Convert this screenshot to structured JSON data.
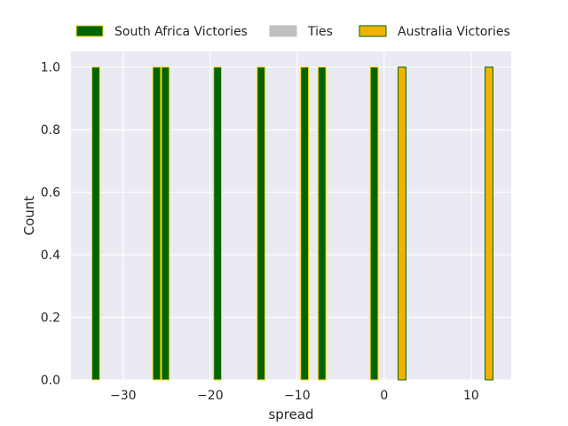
{
  "chart_data": {
    "type": "bar",
    "title": "",
    "xlabel": "spread",
    "ylabel": "Count",
    "xlim": [
      -36,
      14.6
    ],
    "ylim": [
      0,
      1.05
    ],
    "xticks": [
      -30,
      -20,
      -10,
      0,
      10
    ],
    "xtick_labels": [
      "−30",
      "−20",
      "−10",
      "0",
      "10"
    ],
    "yticks": [
      0.0,
      0.2,
      0.4,
      0.6,
      0.8,
      1.0
    ],
    "ytick_labels": [
      "0.0",
      "0.2",
      "0.4",
      "0.6",
      "0.8",
      "1.0"
    ],
    "grid": true,
    "legend_position": "top",
    "series": [
      {
        "name": "South Africa Victories",
        "fill": "#006400",
        "edge": "#ffd700",
        "bins": [
          {
            "x0": -33.6,
            "x1": -32.7,
            "value": 1
          },
          {
            "x0": -26.6,
            "x1": -25.7,
            "value": 1
          },
          {
            "x0": -25.6,
            "x1": -24.7,
            "value": 1
          },
          {
            "x0": -19.6,
            "x1": -18.7,
            "value": 1
          },
          {
            "x0": -14.6,
            "x1": -13.7,
            "value": 1
          },
          {
            "x0": -9.6,
            "x1": -8.7,
            "value": 1
          },
          {
            "x0": -7.6,
            "x1": -6.7,
            "value": 1
          },
          {
            "x0": -1.6,
            "x1": -0.7,
            "value": 1
          }
        ]
      },
      {
        "name": "Ties",
        "fill": "#c0c0c0",
        "edge": "#c0c0c0",
        "bins": []
      },
      {
        "name": "Australia Victories",
        "fill": "#f0b400",
        "edge": "#006400",
        "bins": [
          {
            "x0": 1.6,
            "x1": 2.5,
            "value": 1
          },
          {
            "x0": 11.6,
            "x1": 12.5,
            "value": 1
          }
        ]
      }
    ]
  }
}
